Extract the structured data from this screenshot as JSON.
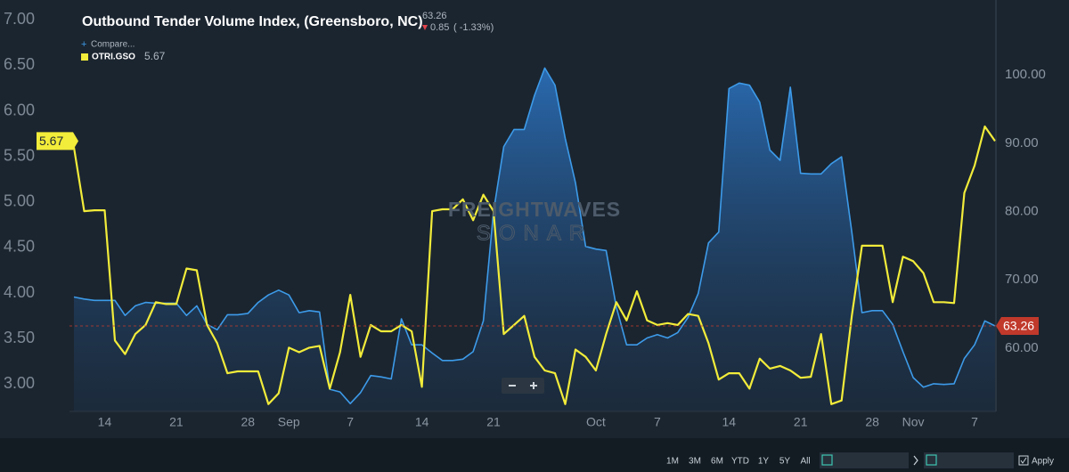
{
  "chart_data": {
    "type": "line",
    "title": "Outbound Tender Volume Index, (Greensboro, NC)",
    "change": "0.85",
    "change_pct": "( -1.33%)",
    "compare": "Compare...",
    "watermark": [
      "FREIGHTWAVES",
      "SONAR"
    ],
    "ranges": [
      "1M",
      "3M",
      "6M",
      "YTD",
      "1Y",
      "5Y",
      "All"
    ],
    "apply": "Apply",
    "categories": [
      null,
      null,
      null,
      "14",
      null,
      null,
      null,
      null,
      null,
      null,
      "21",
      null,
      null,
      null,
      null,
      null,
      null,
      "28",
      null,
      null,
      null,
      "Sep",
      null,
      null,
      null,
      null,
      null,
      "7",
      null,
      null,
      null,
      null,
      null,
      null,
      "14",
      null,
      null,
      null,
      null,
      null,
      null,
      "21",
      null,
      null,
      null,
      null,
      null,
      null,
      null,
      null,
      null,
      "Oct",
      null,
      null,
      null,
      null,
      null,
      "7",
      null,
      null,
      null,
      null,
      null,
      null,
      "14",
      null,
      null,
      null,
      null,
      null,
      null,
      "21",
      null,
      null,
      null,
      null,
      null,
      null,
      "28",
      null,
      null,
      null,
      "Nov",
      null,
      null,
      null,
      null,
      null,
      "7",
      null,
      null
    ],
    "series": [
      {
        "type": "area",
        "axis": "y2",
        "color": "#3d9be9",
        "values": [
          67.5,
          67.2,
          67.0,
          67.0,
          67.0,
          64.8,
          66.2,
          66.7,
          66.6,
          66.6,
          66.6,
          64.8,
          66.2,
          63.5,
          62.7,
          64.9,
          64.9,
          65.1,
          66.7,
          67.8,
          68.5,
          67.8,
          65.2,
          65.5,
          65.3,
          54.0,
          53.6,
          51.9,
          53.5,
          56.0,
          55.8,
          55.5,
          64.3,
          60.5,
          60.5,
          59.3,
          58.2,
          58.2,
          58.4,
          59.5,
          64.0,
          80.0,
          89.5,
          92.0,
          92.0,
          97.0,
          101.0,
          98.5,
          90.7,
          84.2,
          74.9,
          74.5,
          74.3,
          66.0,
          60.5,
          60.5,
          61.5,
          62.0,
          61.5,
          62.3,
          64.5,
          68.0,
          75.4,
          77.0,
          98.0,
          98.8,
          98.5,
          96.0,
          89.0,
          87.5,
          98.2,
          85.6,
          85.5,
          85.5,
          87.0,
          88.0,
          77.0,
          65.2,
          65.5,
          65.5,
          63.5,
          59.5,
          55.7,
          54.3,
          54.8,
          54.7,
          54.8,
          58.5,
          60.5,
          64.0,
          63.26
        ]
      },
      {
        "type": "line",
        "name": "OTRI.GSO",
        "color": "#f2ec3a",
        "values": [
          5.6,
          4.9,
          4.91,
          4.91,
          3.48,
          3.33,
          3.55,
          3.65,
          3.9,
          3.88,
          3.88,
          4.27,
          4.25,
          3.65,
          3.45,
          3.12,
          3.14,
          3.14,
          3.14,
          2.78,
          2.9,
          3.4,
          3.35,
          3.4,
          3.42,
          2.95,
          3.35,
          3.98,
          3.3,
          3.65,
          3.58,
          3.58,
          3.65,
          3.58,
          2.97,
          4.9,
          4.92,
          4.92,
          5.03,
          4.8,
          5.08,
          4.9,
          3.55,
          3.65,
          3.75,
          3.3,
          3.15,
          3.12,
          2.78,
          3.38,
          3.3,
          3.15,
          3.55,
          3.9,
          3.7,
          4.02,
          3.7,
          3.65,
          3.67,
          3.65,
          3.77,
          3.75,
          3.45,
          3.05,
          3.12,
          3.12,
          2.95,
          3.28,
          3.17,
          3.2,
          3.15,
          3.07,
          3.08,
          3.55,
          2.78,
          2.82,
          3.75,
          4.52,
          4.52,
          4.52,
          3.9,
          4.4,
          4.35,
          4.22,
          3.9,
          3.9,
          3.89,
          5.1,
          5.4,
          5.83,
          5.67
        ]
      }
    ],
    "ylim": [
      2.7,
      7.17
    ],
    "yticks": [
      {
        "value": 3,
        "label": "3.00"
      },
      {
        "value": 3.5,
        "label": "3.50"
      },
      {
        "value": 4,
        "label": "4.00"
      },
      {
        "value": 4.5,
        "label": "4.50"
      },
      {
        "value": 5,
        "label": "5.00"
      },
      {
        "value": 5.5,
        "label": "5.50"
      },
      {
        "value": 6,
        "label": "6.00"
      },
      {
        "value": 6.5,
        "label": "6.50"
      },
      {
        "value": 7,
        "label": "7.00"
      }
    ],
    "y2lim": [
      50.75,
      110.3
    ],
    "y2ticks": [
      {
        "value": 60,
        "label": "60.00"
      },
      {
        "value": 70,
        "label": "70.00"
      },
      {
        "value": 80,
        "label": "80.00"
      },
      {
        "value": 90,
        "label": "90.00"
      },
      {
        "value": 100,
        "label": "100.00"
      }
    ],
    "grid": false
  }
}
